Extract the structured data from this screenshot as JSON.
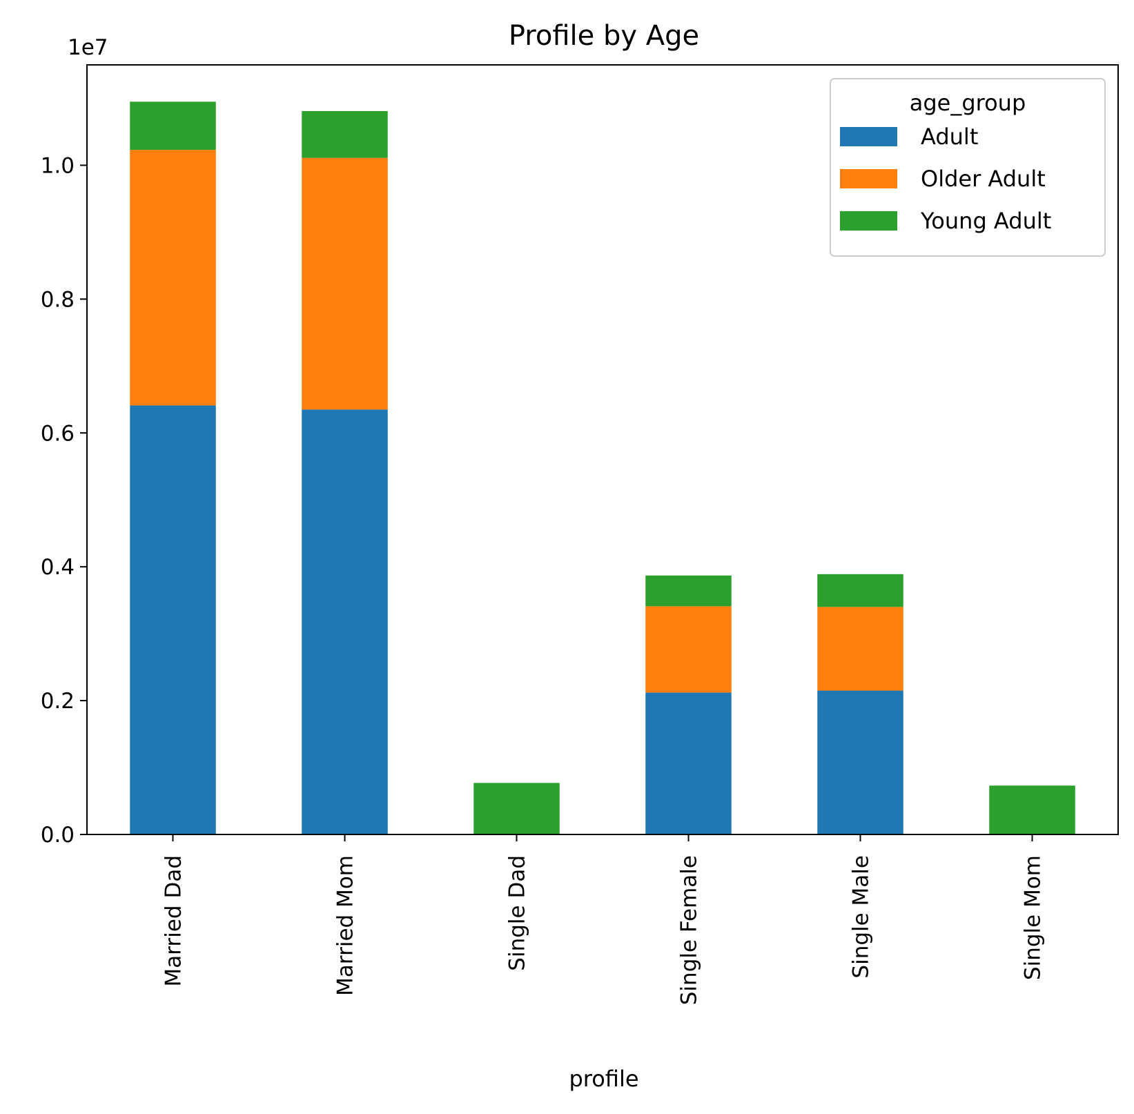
{
  "chart_data": {
    "type": "bar",
    "stacked": true,
    "title": "Profile by Age",
    "xlabel": "profile",
    "ylabel": "",
    "y_offset_text": "1e7",
    "ylim": [
      0,
      1.15
    ],
    "yticks": [
      0.0,
      0.2,
      0.4,
      0.6,
      0.8,
      1.0
    ],
    "ytick_labels": [
      "0.0",
      "0.2",
      "0.4",
      "0.6",
      "0.8",
      "1.0"
    ],
    "categories": [
      "Married Dad",
      "Married Mom",
      "Single Dad",
      "Single Female",
      "Single Male",
      "Single Mom"
    ],
    "legend": {
      "title": "age_group",
      "position": "top-right"
    },
    "series": [
      {
        "name": "Adult",
        "color": "#1f77b4",
        "values": [
          0.641,
          0.635,
          0.0,
          0.212,
          0.215,
          0.0
        ]
      },
      {
        "name": "Older Adult",
        "color": "#ff7f0e",
        "values": [
          0.382,
          0.376,
          0.0,
          0.129,
          0.125,
          0.0
        ]
      },
      {
        "name": "Young Adult",
        "color": "#2ca02c",
        "values": [
          0.072,
          0.07,
          0.077,
          0.046,
          0.049,
          0.073
        ]
      }
    ]
  }
}
